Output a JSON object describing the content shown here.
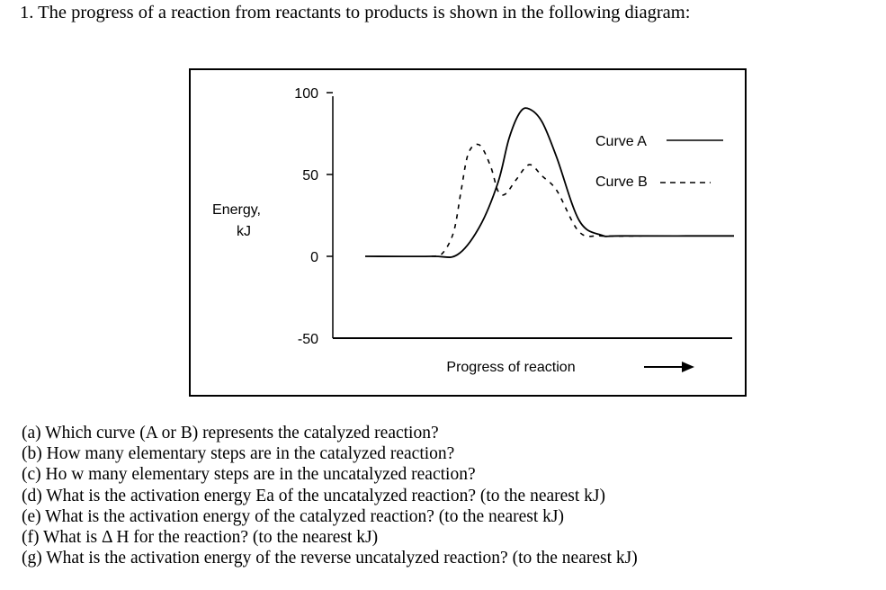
{
  "title": "1. The progress of a reaction from reactants to products is shown in the following diagram:",
  "chart_data": {
    "type": "line",
    "ylabel_line1": "Energy,",
    "ylabel_line2": "kJ",
    "xlabel": "Progress of reaction",
    "ylim": [
      -50,
      100
    ],
    "yticks": [
      "100",
      "50",
      "0",
      "-50"
    ],
    "series": [
      {
        "name": "Curve A",
        "style": "solid",
        "points": [
          [
            0,
            0
          ],
          [
            0.18,
            0
          ],
          [
            0.25,
            1
          ],
          [
            0.31,
            18
          ],
          [
            0.36,
            45
          ],
          [
            0.39,
            72
          ],
          [
            0.42,
            88
          ],
          [
            0.445,
            90
          ],
          [
            0.48,
            82
          ],
          [
            0.52,
            60
          ],
          [
            0.58,
            22
          ],
          [
            0.64,
            13
          ],
          [
            0.7,
            12.5
          ],
          [
            1,
            12.5
          ]
        ]
      },
      {
        "name": "Curve B",
        "style": "dashed",
        "points": [
          [
            0.18,
            0
          ],
          [
            0.21,
            2
          ],
          [
            0.24,
            15
          ],
          [
            0.26,
            40
          ],
          [
            0.28,
            63
          ],
          [
            0.31,
            68
          ],
          [
            0.34,
            55
          ],
          [
            0.36,
            40
          ],
          [
            0.38,
            38
          ],
          [
            0.41,
            47
          ],
          [
            0.445,
            56
          ],
          [
            0.48,
            49
          ],
          [
            0.52,
            40
          ],
          [
            0.58,
            15
          ],
          [
            0.64,
            12.5
          ],
          [
            0.75,
            12.5
          ]
        ]
      }
    ],
    "legend": [
      {
        "label": "Curve A",
        "style": "solid"
      },
      {
        "label": "Curve B",
        "style": "dashed"
      }
    ]
  },
  "questions": [
    "(a) Which curve (A or B) represents the catalyzed reaction?",
    "(b) How many elementary steps are in the catalyzed reaction?",
    "(c) Ho w many elementary steps are in the uncatalyzed reaction?",
    "(d) What is the activation energy Ea of the uncatalyzed reaction? (to the nearest kJ)",
    "(e) What is the activation energy of the catalyzed reaction? (to the nearest kJ)",
    "(f) What is Δ H for the reaction? (to the nearest kJ)",
    "(g) What is the activation energy of the reverse uncatalyzed reaction? (to the nearest kJ)"
  ]
}
